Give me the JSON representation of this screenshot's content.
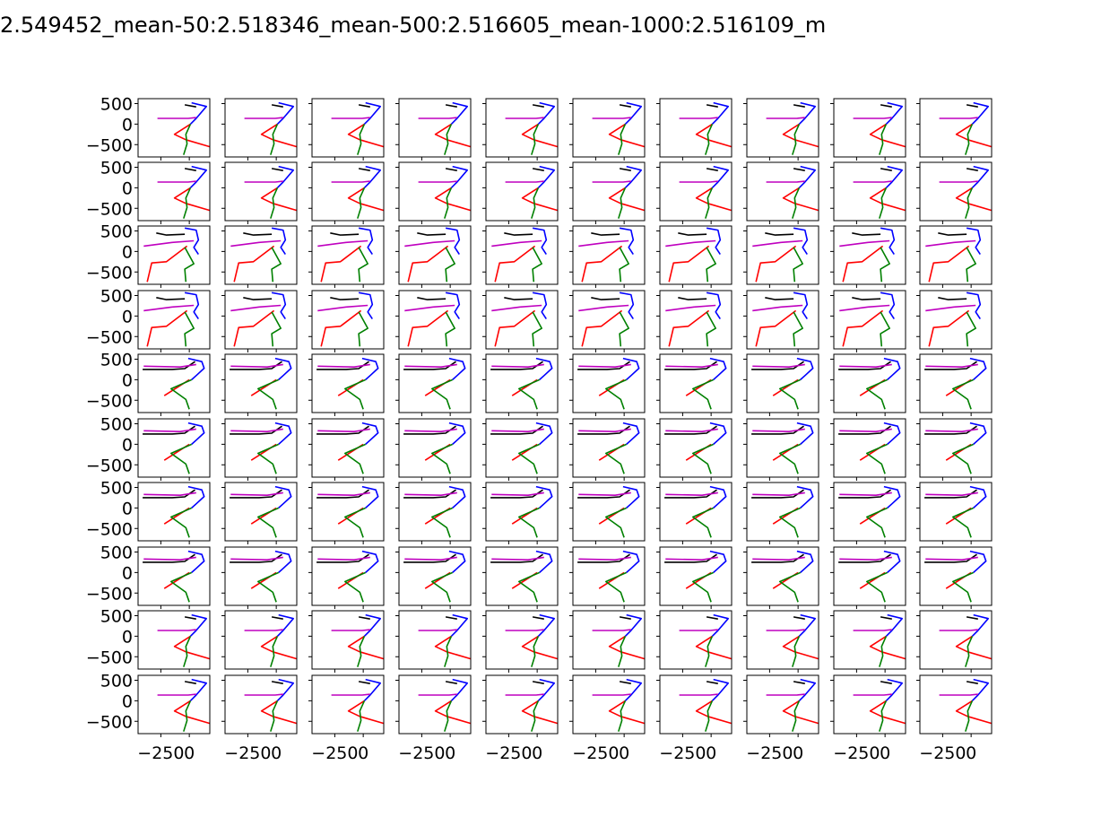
{
  "figure": {
    "title": "2.549452_mean-50:2.518346_mean-500:2.516605_mean-1000:2.516109_m"
  },
  "chart_data": {
    "type": "line",
    "title": "2.549452_mean-50:2.518346_mean-500:2.516605_mean-1000:2.516109_m",
    "layout_grid": "10x10 small multiples, shared axes",
    "xlim": [
      -450,
      180
    ],
    "ylim": [
      -800,
      620
    ],
    "x_ticks": [
      -250,
      0
    ],
    "x_tick_labels": [
      "−250",
      "0"
    ],
    "y_ticks": [
      500,
      0,
      -500
    ],
    "y_tick_labels": [
      "500",
      "0",
      "−500"
    ],
    "grid": false,
    "legend": "none",
    "series_colors": {
      "black": "#000000",
      "blue": "#0000ff",
      "magenta": "#bf00bf",
      "red": "#ff0000",
      "green": "#008000"
    },
    "poses": {
      "A": {
        "black": [
          [
            -40,
            470
          ],
          [
            60,
            420
          ]
        ],
        "blue": [
          [
            20,
            520
          ],
          [
            150,
            430
          ],
          [
            60,
            140
          ],
          [
            10,
            0
          ]
        ],
        "magenta": [
          [
            -280,
            140
          ],
          [
            -10,
            140
          ],
          [
            60,
            160
          ]
        ],
        "red": [
          [
            10,
            0
          ],
          [
            -130,
            -250
          ],
          [
            -30,
            -380
          ],
          [
            180,
            -550
          ]
        ],
        "green": [
          [
            10,
            0
          ],
          [
            -30,
            -250
          ],
          [
            -20,
            -480
          ],
          [
            -50,
            -750
          ]
        ]
      },
      "B": {
        "black": [
          [
            -290,
            450
          ],
          [
            -200,
            400
          ],
          [
            -40,
            420
          ]
        ],
        "blue": [
          [
            -40,
            570
          ],
          [
            60,
            520
          ],
          [
            80,
            280
          ],
          [
            40,
            100
          ],
          [
            80,
            -70
          ]
        ],
        "magenta": [
          [
            -400,
            130
          ],
          [
            -150,
            220
          ],
          [
            40,
            260
          ]
        ],
        "red": [
          [
            -20,
            130
          ],
          [
            -200,
            -250
          ],
          [
            -330,
            -280
          ],
          [
            -370,
            -740
          ]
        ],
        "green": [
          [
            -40,
            100
          ],
          [
            40,
            -300
          ],
          [
            -40,
            -430
          ],
          [
            -30,
            -740
          ]
        ]
      },
      "C": {
        "black": [
          [
            -410,
            250
          ],
          [
            -150,
            250
          ],
          [
            -40,
            270
          ],
          [
            50,
            440
          ]
        ],
        "blue": [
          [
            -10,
            520
          ],
          [
            110,
            440
          ],
          [
            130,
            280
          ],
          [
            60,
            100
          ],
          [
            20,
            0
          ]
        ],
        "magenta": [
          [
            -400,
            330
          ],
          [
            -80,
            310
          ],
          [
            60,
            370
          ]
        ],
        "red": [
          [
            0,
            0
          ],
          [
            -220,
            -390
          ]
        ],
        "green": [
          [
            20,
            0
          ],
          [
            -160,
            -220
          ],
          [
            -30,
            -480
          ],
          [
            0,
            -720
          ]
        ]
      }
    },
    "panel_rows": [
      "A",
      "A",
      "B",
      "B",
      "C",
      "C",
      "C",
      "C",
      "A",
      "A"
    ]
  }
}
